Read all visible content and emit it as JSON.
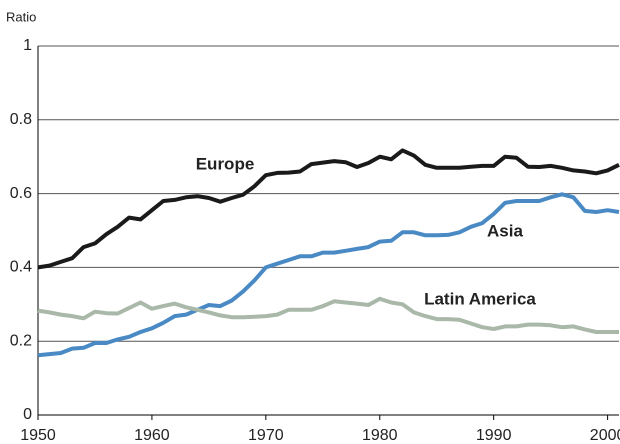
{
  "chart_data": {
    "type": "line",
    "y_axis_label": "Ratio",
    "x": [
      1950,
      1951,
      1952,
      1953,
      1954,
      1955,
      1956,
      1957,
      1958,
      1959,
      1960,
      1961,
      1962,
      1963,
      1964,
      1965,
      1966,
      1967,
      1968,
      1969,
      1970,
      1971,
      1972,
      1973,
      1974,
      1975,
      1976,
      1977,
      1978,
      1979,
      1980,
      1981,
      1982,
      1983,
      1984,
      1985,
      1986,
      1987,
      1988,
      1989,
      1990,
      1991,
      1992,
      1993,
      1994,
      1995,
      1996,
      1997,
      1998,
      1999,
      2000,
      2001
    ],
    "series": [
      {
        "name": "Europe",
        "color": "#1a1a1a",
        "values": [
          0.4,
          0.405,
          0.415,
          0.425,
          0.455,
          0.465,
          0.49,
          0.51,
          0.535,
          0.53,
          0.555,
          0.58,
          0.583,
          0.59,
          0.593,
          0.588,
          0.578,
          0.588,
          0.597,
          0.62,
          0.65,
          0.656,
          0.657,
          0.66,
          0.68,
          0.684,
          0.688,
          0.685,
          0.672,
          0.683,
          0.7,
          0.693,
          0.717,
          0.703,
          0.678,
          0.67,
          0.67,
          0.67,
          0.673,
          0.675,
          0.675,
          0.7,
          0.697,
          0.673,
          0.672,
          0.675,
          0.67,
          0.663,
          0.66,
          0.655,
          0.663,
          0.678
        ]
      },
      {
        "name": "Asia",
        "color": "#4a8ac4",
        "values": [
          0.162,
          0.165,
          0.168,
          0.18,
          0.182,
          0.195,
          0.195,
          0.205,
          0.212,
          0.225,
          0.235,
          0.25,
          0.268,
          0.272,
          0.285,
          0.298,
          0.295,
          0.31,
          0.335,
          0.365,
          0.4,
          0.41,
          0.42,
          0.43,
          0.43,
          0.44,
          0.44,
          0.445,
          0.45,
          0.455,
          0.47,
          0.472,
          0.495,
          0.495,
          0.487,
          0.487,
          0.488,
          0.495,
          0.51,
          0.52,
          0.545,
          0.575,
          0.58,
          0.58,
          0.58,
          0.59,
          0.598,
          0.59,
          0.553,
          0.55,
          0.555,
          0.55
        ]
      },
      {
        "name": "Latin America",
        "color": "#a9b8a8",
        "values": [
          0.283,
          0.278,
          0.272,
          0.268,
          0.262,
          0.28,
          0.276,
          0.275,
          0.29,
          0.305,
          0.288,
          0.295,
          0.302,
          0.292,
          0.285,
          0.278,
          0.27,
          0.265,
          0.265,
          0.266,
          0.268,
          0.272,
          0.285,
          0.285,
          0.285,
          0.295,
          0.308,
          0.305,
          0.302,
          0.298,
          0.315,
          0.305,
          0.3,
          0.278,
          0.268,
          0.26,
          0.26,
          0.258,
          0.248,
          0.238,
          0.233,
          0.24,
          0.24,
          0.245,
          0.245,
          0.243,
          0.238,
          0.24,
          0.232,
          0.225,
          0.225,
          0.225
        ]
      }
    ],
    "xlim": [
      1950,
      2001
    ],
    "xticks": [
      1950,
      1960,
      1970,
      1980,
      1990,
      2000
    ],
    "ylim": [
      0,
      1
    ],
    "yticks": [
      0,
      0.2,
      0.4,
      0.6,
      0.8,
      1
    ],
    "grid": true
  }
}
